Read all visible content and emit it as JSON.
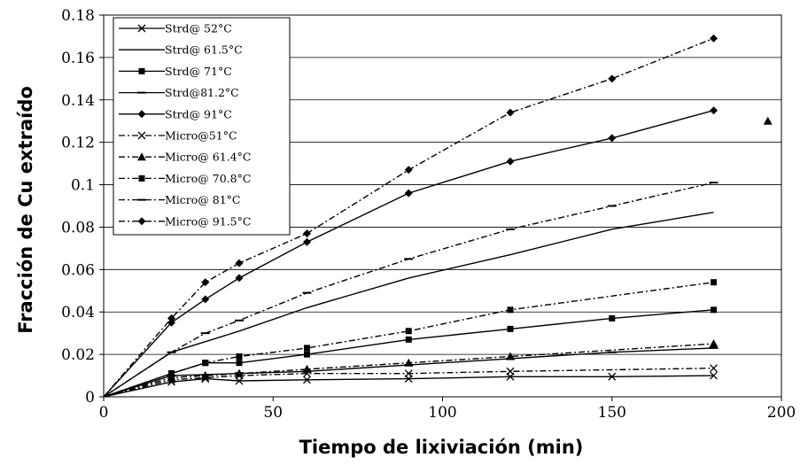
{
  "chart_data": {
    "type": "line",
    "xlabel": "Tiempo de lixiviación (min)",
    "ylabel": "Fracción de Cu extraído",
    "xlim": [
      0,
      200
    ],
    "ylim": [
      0,
      0.18
    ],
    "x_ticks": [
      "0",
      "50",
      "100",
      "150",
      "200"
    ],
    "y_ticks": [
      "0",
      "0.02",
      "0.04",
      "0.06",
      "0.08",
      "0.1",
      "0.12",
      "0.14",
      "0.16",
      "0.18"
    ],
    "grid": "horizontal",
    "legend_position": "top-left",
    "series": [
      {
        "name": "Strd@ 52°C",
        "style": "solid",
        "marker": "x",
        "x": [
          0,
          20,
          30,
          40,
          60,
          90,
          120,
          150,
          180
        ],
        "y": [
          0,
          0.007,
          0.0085,
          0.0075,
          0.008,
          0.0085,
          0.0095,
          0.0095,
          0.01
        ]
      },
      {
        "name": "Strd@ 61.5°C",
        "style": "solid",
        "marker": "none",
        "x": [
          0,
          20,
          40,
          60,
          90,
          120,
          150,
          180
        ],
        "y": [
          0,
          0.021,
          0.031,
          0.042,
          0.056,
          0.067,
          0.079,
          0.087
        ]
      },
      {
        "name": "Strd@ 71°C",
        "style": "solid",
        "marker": "square",
        "x": [
          0,
          20,
          30,
          40,
          60,
          90,
          120,
          150,
          180
        ],
        "y": [
          0,
          0.011,
          0.016,
          0.016,
          0.02,
          0.027,
          0.032,
          0.037,
          0.041
        ]
      },
      {
        "name": "Strd@81.2°C",
        "style": "solid",
        "marker": "dash",
        "x": [
          0,
          20,
          40,
          60,
          90,
          120,
          150,
          180
        ],
        "y": [
          0,
          0.01,
          0.011,
          0.012,
          0.015,
          0.018,
          0.021,
          0.023
        ]
      },
      {
        "name": "Strd@ 91°C",
        "style": "solid",
        "marker": "diamond",
        "x": [
          0,
          20,
          30,
          40,
          60,
          90,
          120,
          150,
          180
        ],
        "y": [
          0,
          0.035,
          0.046,
          0.056,
          0.073,
          0.096,
          0.111,
          0.122,
          0.135
        ]
      },
      {
        "name": "Micro@51°C",
        "style": "dashdot",
        "marker": "x",
        "x": [
          0,
          20,
          30,
          40,
          60,
          90,
          120,
          180
        ],
        "y": [
          0,
          0.008,
          0.009,
          0.01,
          0.011,
          0.011,
          0.012,
          0.0135
        ]
      },
      {
        "name": "Micro@ 61.4°C",
        "style": "dashdot",
        "marker": "triangle",
        "x": [
          0,
          20,
          30,
          40,
          60,
          90,
          120,
          180,
          196
        ],
        "y": [
          0,
          0.009,
          0.01,
          0.011,
          0.013,
          0.016,
          0.019,
          0.025,
          0.13
        ]
      },
      {
        "name": "Micro@ 70.8°C",
        "style": "dashdot",
        "marker": "square",
        "x": [
          0,
          20,
          30,
          40,
          60,
          90,
          120,
          180
        ],
        "y": [
          0,
          0.011,
          0.016,
          0.019,
          0.023,
          0.031,
          0.041,
          0.054
        ]
      },
      {
        "name": "Micro@ 81°C",
        "style": "dashdot",
        "marker": "dash",
        "x": [
          0,
          20,
          30,
          40,
          60,
          90,
          120,
          150,
          180
        ],
        "y": [
          0,
          0.021,
          0.03,
          0.036,
          0.049,
          0.065,
          0.079,
          0.09,
          0.101
        ]
      },
      {
        "name": "Micro@ 91.5°C",
        "style": "dashdot",
        "marker": "diamond",
        "x": [
          0,
          20,
          30,
          40,
          60,
          90,
          120,
          150,
          180
        ],
        "y": [
          0,
          0.037,
          0.054,
          0.063,
          0.077,
          0.107,
          0.134,
          0.15,
          0.169
        ]
      }
    ]
  }
}
